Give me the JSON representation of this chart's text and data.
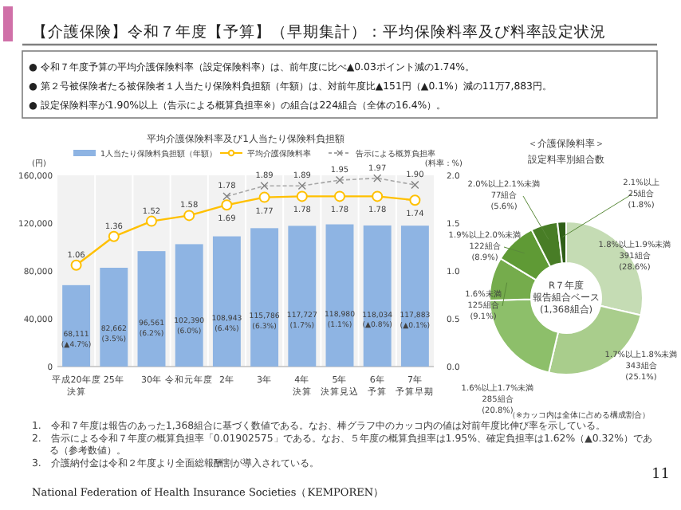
{
  "chart_data": [
    {
      "type": "other",
      "title": "【介護保険】令和７年度【予算】（早期集計）：平均保険料率及び料率設定状況",
      "annotations": [
        "● 令和７年度予算の平均介護保険料率（設定保険料率）は、前年度に比べ▲0.03ポイント減の1.74%。",
        "● 第２号被保険者たる被保険者１人当たり保険料負担額（年額）は、対前年度比▲151円（▲0.1%）減の11万7,883円。",
        "● 設定保険料率が1.90%以上（告示による概算負担率※）の組合は224組合（全体の16.4%）。"
      ]
    },
    {
      "type": "bar",
      "title": "平均介護保険料率及び1人当たり保険料負担額",
      "ylabel": "(円)",
      "y2label": "(料率：%)",
      "categories": [
        "平成20年度決算",
        "25年",
        "30年",
        "令和元年度",
        "2年",
        "3年",
        "4年決算",
        "5年決算見込",
        "6年予算",
        "7年予算早期"
      ],
      "series": [
        {
          "name": "1人当たり保険料負担額（年額）",
          "type": "bar",
          "color": "#8eb4e3",
          "values": [
            68111,
            82662,
            96561,
            102390,
            108943,
            115786,
            117727,
            118980,
            118034,
            117883
          ],
          "value_labels": [
            "68,111\n(▲4.7%)",
            "82,662\n(3.5%)",
            "96,561\n(6.2%)",
            "102,390\n(6.0%)",
            "108,943\n(6.4%)",
            "115,786\n(6.3%)",
            "117,727\n(1.7%)",
            "118,980\n(1.1%)",
            "118,034\n(▲0.8%)",
            "117,883\n(▲0.1%)"
          ]
        },
        {
          "name": "平均介護保険料率",
          "type": "line",
          "axis": "y2",
          "color": "#ffc000",
          "marker": "circle",
          "line_style": "solid",
          "values": [
            1.06,
            1.36,
            1.52,
            1.58,
            1.69,
            1.77,
            1.78,
            1.78,
            1.78,
            1.74
          ],
          "data_labels": true
        },
        {
          "name": "告示による概算負担率",
          "type": "line",
          "axis": "y2",
          "color": "#a6a6a6",
          "marker": "cross",
          "line_style": "dashed",
          "values": [
            null,
            null,
            null,
            null,
            1.78,
            1.89,
            1.89,
            1.95,
            1.97,
            1.9
          ],
          "value_labels": [
            null,
            null,
            null,
            null,
            "1.78",
            "1.89",
            "1.89",
            "1.95",
            "1.97",
            "1.90"
          ]
        }
      ],
      "ylim": [
        0,
        160000
      ],
      "yticks": [
        {
          "value": 0,
          "label": "0"
        },
        {
          "value": 40000,
          "label": "40,000"
        },
        {
          "value": 80000,
          "label": "80,000"
        },
        {
          "value": 120000,
          "label": "120,000"
        },
        {
          "value": 160000,
          "label": "160,000"
        }
      ],
      "y2lim": [
        0,
        2.0
      ],
      "y2ticks": [
        {
          "value": 0,
          "label": "0.0"
        },
        {
          "value": 0.5,
          "label": "0.5"
        },
        {
          "value": 1.0,
          "label": "1.0"
        },
        {
          "value": 1.5,
          "label": "1.5"
        },
        {
          "value": 2.0,
          "label": "2.0"
        }
      ],
      "grid": "x",
      "legend": "top"
    },
    {
      "type": "donut",
      "title": "＜介護保険料率＞",
      "subtitle": "設定料率別組合数",
      "categories": [
        "1.8%以上1.9%未満",
        "1.7%以上1.8%未満",
        "1.6%以上1.7%未満",
        "1.6%未満",
        "1.9%以上2.0%未満",
        "2.0%以上2.1%未満",
        "2.1%以上"
      ],
      "values": [
        391,
        343,
        285,
        125,
        122,
        77,
        25
      ],
      "value_labels": [
        "391組合\n(28.6%)",
        "343組合\n(25.1%)",
        "285組合\n(20.8%)",
        "125組合\n(9.1%)",
        "122組合\n(8.9%)",
        "77組合\n(5.6%)",
        "25組合\n(1.8%)"
      ],
      "colors": [
        "#c5dcb4",
        "#a9cd8c",
        "#8dbf6a",
        "#75ac4c",
        "#5f9a35",
        "#487d26",
        "#2f5f17"
      ],
      "annotations": [
        "R７年度",
        "報告組合ベース",
        "(1,368組合)",
        "（※カッコ内は全体に占める構成割合）"
      ]
    },
    {
      "type": "other",
      "annotations": [
        "1.　令和７年度は報告のあった1,368組合に基づく数値である。なお、棒グラフ中のカッコ内の値は対前年度比伸び率を示している。",
        "2.　告示による令和７年度の概算負担率「0.01902575」である。なお、５年度の概算負担率は1.95%、確定負担率は1.62%（▲0.32%）である（参考数値）。",
        "3.　介護納付金は令和２年度より全面総報酬割が導入されている。",
        "National Federation of Health Insurance Societies（KEMPOREN）",
        "11"
      ]
    }
  ]
}
